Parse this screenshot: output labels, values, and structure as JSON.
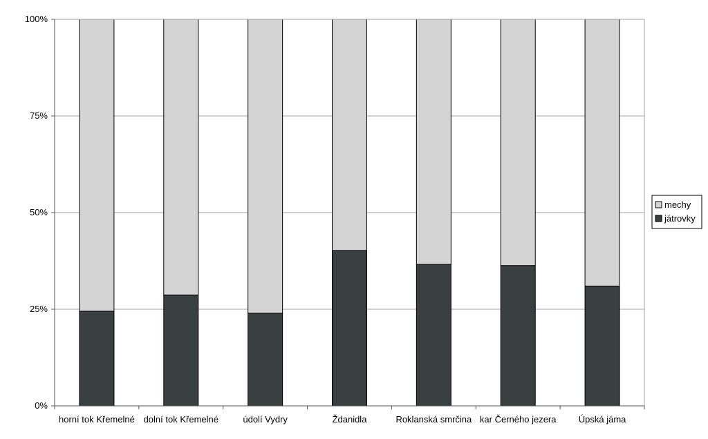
{
  "chart_data": {
    "type": "bar",
    "stacked": true,
    "percent": true,
    "categories": [
      "horní tok Křemelné",
      "dolní tok Křemelné",
      "údolí Vydry",
      "Ždanidla",
      "Roklanská smrčina",
      "kar Černého jezera",
      "Úpská jáma"
    ],
    "series": [
      {
        "name": "játrovky",
        "color": "#3a3f40",
        "values": [
          24.5,
          28.7,
          24.0,
          40.2,
          36.6,
          36.3,
          31.0
        ]
      },
      {
        "name": "mechy",
        "color": "#d4d4d4",
        "values": [
          75.5,
          71.3,
          76.0,
          59.8,
          63.4,
          63.7,
          69.0
        ]
      }
    ],
    "yticks": [
      "0%",
      "25%",
      "50%",
      "75%",
      "100%"
    ],
    "ylim": [
      0,
      100
    ],
    "grid": true,
    "legend": {
      "placement": "right",
      "order": [
        "mechy",
        "játrovky"
      ]
    }
  }
}
